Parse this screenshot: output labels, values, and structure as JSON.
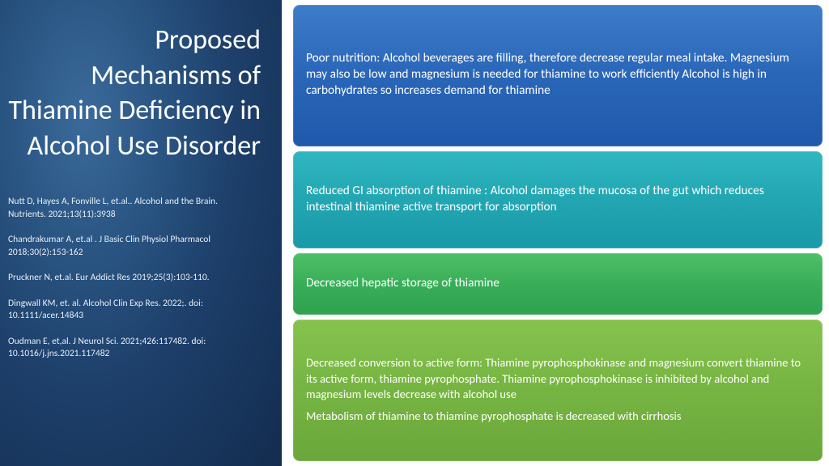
{
  "title": "Proposed Mechanisms of Thiamine Deficiency in Alcohol Use Disorder",
  "references": [
    "Nutt D, Hayes A, Fonville L, et.al.. Alcohol and the Brain. Nutrients. 2021;13(11):3938",
    "Chandrakumar A, et.al . J Basic Clin Physiol Pharmacol 2018;30(2):153-162",
    "Pruckner N, et.al. Eur Addict Res 2019;25(3):103-110.",
    "Dingwall KM, et. al. Alcohol Clin Exp Res. 2022;. doi: 10.1111/acer.14843",
    "Oudman E, et,al.  J Neurol Sci. 2021;426:117482. doi: 10.1016/j.jns.2021.117482"
  ],
  "boxes": {
    "b1": "Poor nutrition: Alcohol beverages are filling, therefore decrease regular meal intake.  Magnesium may also be low and magnesium is needed for thiamine to work efficiently Alcohol is high in carbohydrates so increases demand for thiamine",
    "b2": "Reduced GI absorption of thiamine : Alcohol damages the mucosa of the gut which reduces intestinal thiamine active transport for absorption",
    "b3": "Decreased hepatic storage of thiamine",
    "b4a": "Decreased conversion  to active form: Thiamine pyrophosphokinase and magnesium convert thiamine to its active form, thiamine pyrophosphate. Thiamine pyrophosphokinase is inhibited by alcohol and magnesium levels decrease with alcohol use",
    "b4b": "Metabolism of thiamine to thiamine pyrophosphate is  decreased with cirrhosis"
  },
  "styling": {
    "slide_width": 1024,
    "slide_height": 576,
    "left_panel_width": 348,
    "left_bg_gradient": [
      "#3b6a9a",
      "#2b5785",
      "#1d3f6a",
      "#132c4f"
    ],
    "title_fontsize": 34,
    "title_weight": 300,
    "title_align": "right",
    "ref_fontsize": 11.5,
    "box_radius": 8,
    "box_fontsize": 15.3,
    "box4_fontsize": 14.5,
    "box_colors": {
      "b1": [
        "#3d7cc9",
        "#2a66b8",
        "#1f59ad"
      ],
      "b2": [
        "#2fb7c0",
        "#22a6b2",
        "#1a99a8"
      ],
      "b3": [
        "#4fbf68",
        "#39ae58",
        "#2fa150"
      ],
      "b4": [
        "#86c24e",
        "#76b442",
        "#6aa73b"
      ]
    },
    "box_flex": {
      "b1": 1.55,
      "b2": 1.0,
      "b3": 0.55,
      "b4": 1.55
    },
    "text_color": "#ffffff",
    "right_bg": "#ffffff"
  }
}
